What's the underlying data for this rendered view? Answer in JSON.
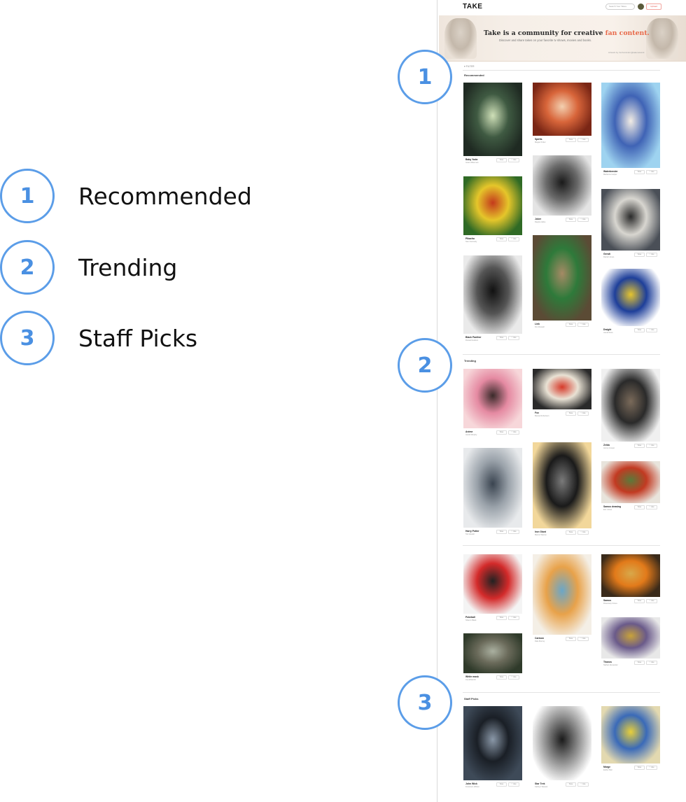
{
  "legend": [
    {
      "number": "1",
      "label": "Recommended"
    },
    {
      "number": "2",
      "label": "Trending"
    },
    {
      "number": "3",
      "label": "Staff Picks"
    }
  ],
  "markers": [
    "1",
    "2",
    "3"
  ],
  "app": {
    "logo": "TAKE",
    "search_placeholder": "Search Your Takes",
    "upload_label": "Upload",
    "filter_label": "FILTER",
    "banner": {
      "title_lead": "Take is a community for creative ",
      "title_highlight": "fan content.",
      "subtitle": "Discover and share takes on your favorite tv shows, movies and books.",
      "credit": "Artwork by Ira Kaminski @takenetwork"
    },
    "card_buttons": {
      "save": "Save",
      "like": "Like"
    },
    "sections": {
      "recommended": "Recommended",
      "trending": "Trending",
      "staff_picks": "Staff Picks"
    },
    "cards": [
      {
        "title": "Baby Yoda",
        "author": "Gwen Alderman",
        "colors": [
          "#1f2a22",
          "#3f5a42",
          "#cfe0b8"
        ]
      },
      {
        "title": "Spirits",
        "author": "Megan Potter",
        "colors": [
          "#7a2615",
          "#d8653a",
          "#f3d0b0"
        ]
      },
      {
        "title": "Waterbender",
        "author": "Marianne Harper",
        "colors": [
          "#9ed3f0",
          "#3f63b5",
          "#f2ece4"
        ]
      },
      {
        "title": "Pikachu",
        "author": "Sam Kennedy",
        "colors": [
          "#2f6a25",
          "#e5c62a",
          "#c43a1c"
        ]
      },
      {
        "title": "Joker",
        "author": "Regina Hicks",
        "colors": [
          "#e4e4e4",
          "#6a6a6a",
          "#1a1a1a"
        ]
      },
      {
        "title": "Geralt",
        "author": "Darrell Jones",
        "colors": [
          "#4a4f57",
          "#d8d6d0",
          "#2a2a2a"
        ]
      },
      {
        "title": "Black Panther",
        "author": "Russell Hudson",
        "colors": [
          "#eaeaea",
          "#555555",
          "#111111"
        ]
      },
      {
        "title": "Link",
        "author": "Kim Russell",
        "colors": [
          "#5b4b35",
          "#2e7a3a",
          "#a58a65"
        ]
      },
      {
        "title": "Dwight",
        "author": "Jamal Ross",
        "colors": [
          "#ffffff",
          "#1e3f9a",
          "#e6c52e"
        ]
      },
      {
        "title": "Anime",
        "author": "Jacob Murphy",
        "colors": [
          "#f7d7da",
          "#e58aa2",
          "#3a2a2a"
        ]
      },
      {
        "title": "Fox",
        "author": "Bessie Robertson",
        "colors": [
          "#2a2a2a",
          "#e9e2d4",
          "#d63a2a"
        ]
      },
      {
        "title": "Zelda",
        "author": "Jenny Cooper",
        "colors": [
          "#f0f0f0",
          "#2a2a2a",
          "#7a6a5a"
        ]
      },
      {
        "title": "Harry Potter",
        "author": "Ted Howell",
        "colors": [
          "#e8eaec",
          "#9aa2aa",
          "#3a4450"
        ]
      },
      {
        "title": "Iron Giant",
        "author": "Marvin Warren",
        "colors": [
          "#f2d79a",
          "#1a1a1a",
          "#7a7a7a"
        ]
      },
      {
        "title": "Samus drawing",
        "author": "Eric Jones",
        "colors": [
          "#e8e4dc",
          "#c23a22",
          "#5a7a3a"
        ]
      },
      {
        "title": "Pokeball",
        "author": "Sharon Black",
        "colors": [
          "#f4f4f4",
          "#d32a2a",
          "#222222"
        ]
      },
      {
        "title": "Cartoon",
        "author": "Dale Murray",
        "colors": [
          "#f4efe6",
          "#e8a24a",
          "#6aa6c8"
        ]
      },
      {
        "title": "Samus",
        "author": "Rosemary Flores",
        "colors": [
          "#3a2a1a",
          "#e27a1a",
          "#d8a84a"
        ]
      },
      {
        "title": "White mask",
        "author": "Lily Edwards",
        "colors": [
          "#2f3a2a",
          "#6a6a5a",
          "#aab0a0"
        ]
      },
      {
        "title": "Thanos",
        "author": "Nathan Alexander",
        "colors": [
          "#e8e8e8",
          "#6a5a8a",
          "#c8a23a"
        ]
      },
      {
        "title": "John Wick",
        "author": "Francisco Wilson",
        "colors": [
          "#3e4a58",
          "#1a1f26",
          "#8a98a8"
        ]
      },
      {
        "title": "Star Trek",
        "author": "Kathryn Weaver",
        "colors": [
          "#ffffff",
          "#8a8a8a",
          "#1a1a1a"
        ]
      },
      {
        "title": "Marge",
        "author": "Esther Bell",
        "colors": [
          "#e3d9b0",
          "#3a6ab8",
          "#e8cf3a"
        ]
      }
    ]
  }
}
